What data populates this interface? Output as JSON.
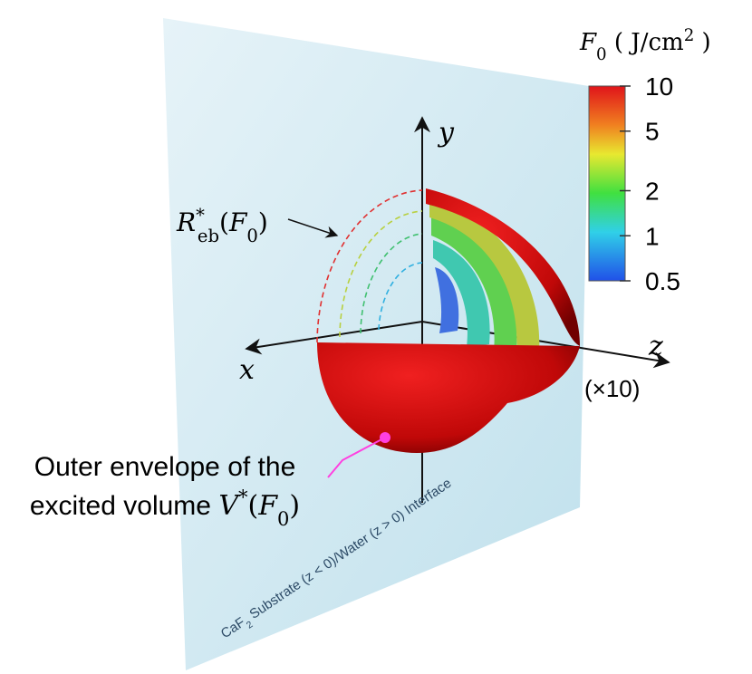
{
  "colorbar": {
    "title_parts": [
      "F",
      "0",
      " ( J/cm",
      "2",
      " )"
    ],
    "scale": "log",
    "range": [
      0.5,
      10
    ],
    "ticks": [
      10,
      5,
      2,
      1,
      0.5
    ]
  },
  "axes": {
    "x": "x",
    "y": "y",
    "z": "z",
    "z_scale": "(×10)"
  },
  "labels": {
    "radius": [
      "R",
      "*",
      "eb",
      "(",
      "F",
      "0",
      ")"
    ],
    "envelope_line1": "Outer envelope of the",
    "envelope_line2": [
      "excited volume ",
      "V",
      "*",
      "(",
      "F",
      "0",
      ")"
    ],
    "interface": [
      "CaF",
      "2",
      " Substrate (z < 0)/Water (z > 0) Interface"
    ]
  }
}
